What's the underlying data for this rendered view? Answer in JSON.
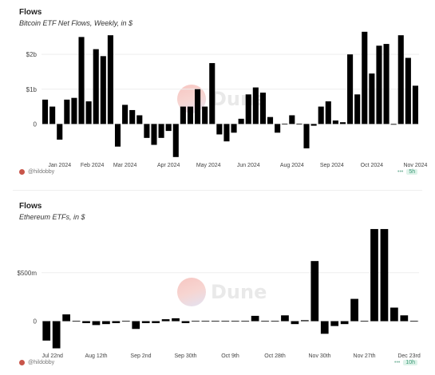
{
  "chart_data": [
    {
      "type": "bar",
      "title": "Flows",
      "subtitle": "Bitcoin ETF Net Flows, Weekly, in $",
      "y_tick_labels": [
        "$2b",
        "$1b",
        "0"
      ],
      "y_ticks": [
        2000,
        1000,
        0
      ],
      "ylim": [
        -1000,
        2600
      ],
      "x_tick_labels": [
        "Jan 2024",
        "Feb 2024",
        "Mar 2024",
        "Apr 2024",
        "May 2024",
        "Jun 2024",
        "Aug 2024",
        "Sep 2024",
        "Oct 2024",
        "Nov 2024"
      ],
      "x_tick_positions": [
        2,
        6.5,
        11,
        17,
        22.5,
        28,
        34,
        39.5,
        45,
        51
      ],
      "values": [
        700,
        500,
        -450,
        700,
        750,
        2500,
        650,
        2150,
        1950,
        2550,
        -650,
        550,
        400,
        250,
        -400,
        -600,
        -400,
        -200,
        -950,
        500,
        500,
        1000,
        500,
        1750,
        -300,
        -500,
        -250,
        150,
        850,
        1050,
        900,
        200,
        -250,
        0,
        250,
        0,
        -700,
        -50,
        500,
        650,
        100,
        50,
        2000,
        850,
        2650,
        1450,
        2250,
        2300,
        -20,
        2550,
        1900,
        1100
      ],
      "footer_author": "@hildobby",
      "footer_badge": "5h"
    },
    {
      "type": "bar",
      "title": "Flows",
      "subtitle": "Ethereum ETFs, in $",
      "y_tick_labels": [
        "$500m",
        "0"
      ],
      "y_ticks": [
        500,
        0
      ],
      "ylim": [
        -300,
        1000
      ],
      "x_tick_labels": [
        "Jul 22nd",
        "Aug 12th",
        "Sep 2nd",
        "Sep 30th",
        "Oct 9th",
        "Oct 28th",
        "Nov 30th",
        "Nov 27th",
        "Dec 23rd"
      ],
      "x_tick_positions": [
        0.6,
        5,
        9.5,
        14,
        18.5,
        23,
        27.5,
        32,
        36.5
      ],
      "values": [
        -200,
        -280,
        70,
        0,
        -20,
        -40,
        -30,
        -20,
        0,
        -80,
        -20,
        -20,
        20,
        30,
        -20,
        0,
        0,
        0,
        0,
        0,
        0,
        55,
        0,
        0,
        60,
        -30,
        10,
        620,
        -130,
        -50,
        -30,
        230,
        0,
        950,
        950,
        140,
        60,
        0
      ],
      "footer_author": "@hildobby",
      "footer_badge": "10h"
    }
  ],
  "brand": {
    "watermark": "Dune",
    "bar_color": "#000000",
    "gridline_color": "#eeeeee"
  }
}
